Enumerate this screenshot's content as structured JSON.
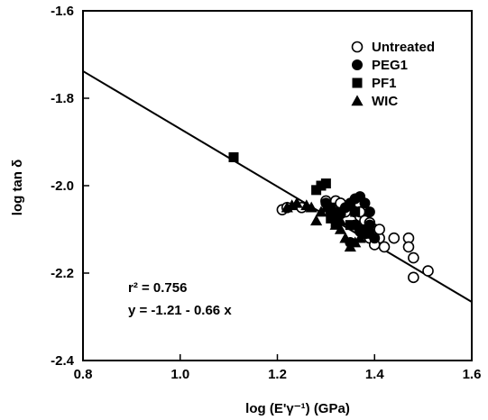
{
  "chart_data": {
    "type": "scatter",
    "title": "",
    "xlabel": "log (E'γ⁻¹) (GPa)",
    "ylabel": "log tan δ",
    "xlim": [
      0.8,
      1.6
    ],
    "ylim": [
      -2.4,
      -1.6
    ],
    "xticks": [
      0.8,
      1.0,
      1.2,
      1.4,
      1.6
    ],
    "yticks": [
      -1.6,
      -1.8,
      -2.0,
      -2.2,
      -2.4
    ],
    "xtick_labels": [
      "0.8",
      "1.0",
      "1.2",
      "1.4",
      "1.6"
    ],
    "ytick_labels": [
      "-1.6",
      "-1.8",
      "-2.0",
      "-2.2",
      "-2.4"
    ],
    "legend_position": "top-right",
    "series": [
      {
        "name": "Untreated",
        "marker": "circle-open",
        "points": [
          [
            1.21,
            -2.055
          ],
          [
            1.22,
            -2.05
          ],
          [
            1.25,
            -2.05
          ],
          [
            1.3,
            -2.035
          ],
          [
            1.32,
            -2.035
          ],
          [
            1.33,
            -2.04
          ],
          [
            1.35,
            -2.05
          ],
          [
            1.36,
            -2.06
          ],
          [
            1.37,
            -2.07
          ],
          [
            1.38,
            -2.08
          ],
          [
            1.39,
            -2.085
          ],
          [
            1.4,
            -2.1
          ],
          [
            1.41,
            -2.12
          ],
          [
            1.39,
            -2.12
          ],
          [
            1.4,
            -2.135
          ],
          [
            1.42,
            -2.14
          ],
          [
            1.44,
            -2.12
          ],
          [
            1.47,
            -2.12
          ],
          [
            1.47,
            -2.14
          ],
          [
            1.48,
            -2.165
          ],
          [
            1.51,
            -2.195
          ],
          [
            1.48,
            -2.21
          ],
          [
            1.37,
            -2.06
          ],
          [
            1.34,
            -2.06
          ],
          [
            1.41,
            -2.1
          ]
        ]
      },
      {
        "name": "PEG1",
        "marker": "circle-filled",
        "points": [
          [
            1.3,
            -2.04
          ],
          [
            1.31,
            -2.06
          ],
          [
            1.32,
            -2.07
          ],
          [
            1.33,
            -2.065
          ],
          [
            1.34,
            -2.05
          ],
          [
            1.35,
            -2.04
          ],
          [
            1.36,
            -2.03
          ],
          [
            1.37,
            -2.025
          ],
          [
            1.38,
            -2.04
          ],
          [
            1.36,
            -2.09
          ],
          [
            1.37,
            -2.105
          ],
          [
            1.38,
            -2.11
          ],
          [
            1.39,
            -2.09
          ],
          [
            1.4,
            -2.12
          ],
          [
            1.35,
            -2.13
          ],
          [
            1.39,
            -2.06
          ]
        ]
      },
      {
        "name": "PF1",
        "marker": "square-filled",
        "points": [
          [
            1.11,
            -1.935
          ],
          [
            1.28,
            -2.01
          ],
          [
            1.29,
            -2.0
          ],
          [
            1.3,
            -1.995
          ],
          [
            1.31,
            -2.075
          ],
          [
            1.32,
            -2.085
          ],
          [
            1.33,
            -2.06
          ],
          [
            1.35,
            -2.09
          ],
          [
            1.36,
            -2.06
          ],
          [
            1.38,
            -2.1
          ],
          [
            1.39,
            -2.11
          ],
          [
            1.31,
            -2.05
          ]
        ]
      },
      {
        "name": "WIC",
        "marker": "triangle-filled",
        "points": [
          [
            1.22,
            -2.05
          ],
          [
            1.23,
            -2.045
          ],
          [
            1.24,
            -2.04
          ],
          [
            1.26,
            -2.045
          ],
          [
            1.27,
            -2.05
          ],
          [
            1.28,
            -2.08
          ],
          [
            1.29,
            -2.06
          ],
          [
            1.3,
            -2.05
          ],
          [
            1.32,
            -2.09
          ],
          [
            1.33,
            -2.1
          ],
          [
            1.34,
            -2.12
          ],
          [
            1.35,
            -2.14
          ],
          [
            1.36,
            -2.13
          ],
          [
            1.37,
            -2.12
          ],
          [
            1.38,
            -2.1
          ],
          [
            1.33,
            -2.08
          ]
        ]
      }
    ],
    "fit_line": {
      "intercept": -1.21,
      "slope": -0.66,
      "x_range": [
        0.8,
        1.6
      ]
    },
    "annotations": {
      "r2": "r² = 0.756",
      "equation": "y = -1.21 - 0.66 x"
    }
  }
}
